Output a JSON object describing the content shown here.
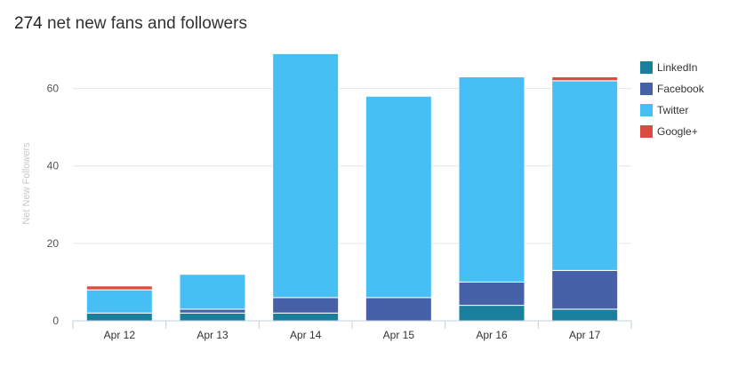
{
  "header": {
    "count": "274",
    "title_text": "net new fans and followers"
  },
  "chart_data": {
    "type": "bar",
    "stacked": true,
    "categories": [
      "Apr 12",
      "Apr 13",
      "Apr 14",
      "Apr 15",
      "Apr 16",
      "Apr 17"
    ],
    "series": [
      {
        "name": "LinkedIn",
        "color": "#1a7f9c",
        "values": [
          2,
          2,
          2,
          0,
          4,
          3
        ]
      },
      {
        "name": "Facebook",
        "color": "#4661a8",
        "values": [
          0,
          1,
          4,
          6,
          6,
          10
        ]
      },
      {
        "name": "Twitter",
        "color": "#47bff4",
        "values": [
          6,
          9,
          63,
          52,
          53,
          49
        ]
      },
      {
        "name": "Google+",
        "color": "#d94c3f",
        "values": [
          1,
          0,
          0,
          0,
          0,
          1
        ]
      }
    ],
    "ylabel": "Net New Followers",
    "xlabel": "",
    "ylim": [
      0,
      70
    ],
    "yticks": [
      0,
      20,
      40,
      60
    ],
    "grid": true,
    "legend_position": "right"
  }
}
